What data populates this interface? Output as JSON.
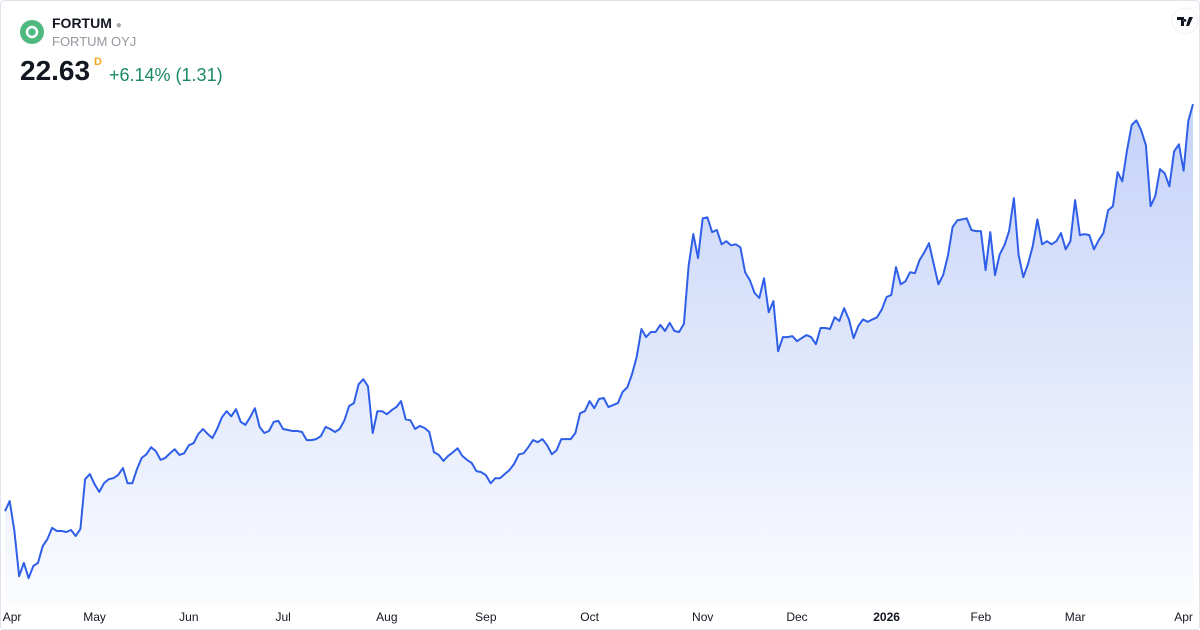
{
  "header": {
    "symbol": "FORTUM",
    "name": "FORTUM OYJ",
    "price": "22.63",
    "flag": "D",
    "change": "+6.14% (1.31)"
  },
  "chart_data": {
    "type": "area",
    "color": "#2f5fe8",
    "xlim": [
      0,
      252
    ],
    "ylim": [
      12.84,
      22.89
    ],
    "xticks": [
      {
        "value": 1.5,
        "label": "Apr"
      },
      {
        "value": 19,
        "label": "May"
      },
      {
        "value": 39,
        "label": "Jun"
      },
      {
        "value": 59,
        "label": "Jul"
      },
      {
        "value": 81,
        "label": "Aug"
      },
      {
        "value": 102,
        "label": "Sep"
      },
      {
        "value": 124,
        "label": "Oct"
      },
      {
        "value": 148,
        "label": "Nov"
      },
      {
        "value": 168,
        "label": "Dec"
      },
      {
        "value": 187,
        "label": "2026"
      },
      {
        "value": 207,
        "label": "Feb"
      },
      {
        "value": 227,
        "label": "Mar"
      },
      {
        "value": 250,
        "label": "Apr"
      }
    ],
    "values": [
      14.61,
      14.81,
      14.22,
      13.33,
      13.59,
      13.29,
      13.53,
      13.59,
      13.92,
      14.06,
      14.28,
      14.22,
      14.22,
      14.2,
      14.24,
      14.12,
      14.26,
      15.24,
      15.34,
      15.14,
      14.99,
      15.16,
      15.24,
      15.26,
      15.32,
      15.46,
      15.16,
      15.16,
      15.44,
      15.66,
      15.73,
      15.87,
      15.79,
      15.62,
      15.66,
      15.75,
      15.83,
      15.72,
      15.75,
      15.91,
      15.95,
      16.13,
      16.23,
      16.13,
      16.05,
      16.23,
      16.46,
      16.58,
      16.48,
      16.62,
      16.37,
      16.31,
      16.46,
      16.64,
      16.27,
      16.15,
      16.19,
      16.37,
      16.39,
      16.23,
      16.21,
      16.19,
      16.19,
      16.17,
      16.01,
      16.01,
      16.03,
      16.09,
      16.27,
      16.23,
      16.17,
      16.23,
      16.4,
      16.68,
      16.74,
      17.11,
      17.21,
      17.07,
      16.15,
      16.58,
      16.58,
      16.52,
      16.6,
      16.66,
      16.78,
      16.42,
      16.4,
      16.23,
      16.29,
      16.25,
      16.17,
      15.77,
      15.72,
      15.6,
      15.7,
      15.77,
      15.85,
      15.7,
      15.62,
      15.56,
      15.4,
      15.38,
      15.32,
      15.16,
      15.26,
      15.26,
      15.34,
      15.42,
      15.54,
      15.73,
      15.75,
      15.87,
      16.01,
      15.97,
      16.03,
      15.91,
      15.73,
      15.81,
      16.03,
      16.03,
      16.03,
      16.15,
      16.54,
      16.58,
      16.78,
      16.64,
      16.82,
      16.84,
      16.66,
      16.7,
      16.74,
      16.96,
      17.05,
      17.31,
      17.65,
      18.2,
      18.04,
      18.14,
      18.14,
      18.28,
      18.16,
      18.32,
      18.16,
      18.14,
      18.3,
      19.44,
      20.07,
      19.6,
      20.38,
      20.4,
      20.11,
      20.15,
      19.87,
      19.93,
      19.85,
      19.87,
      19.81,
      19.32,
      19.16,
      18.91,
      18.81,
      19.2,
      18.53,
      18.75,
      17.76,
      18.04,
      18.04,
      18.06,
      17.96,
      18.02,
      18.08,
      18.04,
      17.9,
      18.22,
      18.22,
      18.2,
      18.43,
      18.36,
      18.61,
      18.39,
      18.02,
      18.26,
      18.39,
      18.34,
      18.39,
      18.43,
      18.59,
      18.83,
      18.87,
      19.42,
      19.08,
      19.14,
      19.32,
      19.3,
      19.56,
      19.71,
      19.89,
      19.48,
      19.08,
      19.26,
      19.64,
      20.21,
      20.34,
      20.36,
      20.38,
      20.15,
      20.13,
      20.13,
      19.36,
      20.11,
      19.26,
      19.67,
      19.85,
      20.13,
      20.78,
      19.66,
      19.22,
      19.48,
      19.83,
      20.36,
      19.87,
      19.93,
      19.87,
      19.93,
      20.09,
      19.77,
      19.93,
      20.74,
      20.05,
      20.07,
      20.05,
      19.77,
      19.95,
      20.09,
      20.54,
      20.62,
      21.29,
      21.11,
      21.72,
      22.22,
      22.31,
      22.12,
      21.82,
      20.62,
      20.82,
      21.35,
      21.27,
      21.01,
      21.7,
      21.84,
      21.32,
      22.3,
      22.63
    ]
  }
}
